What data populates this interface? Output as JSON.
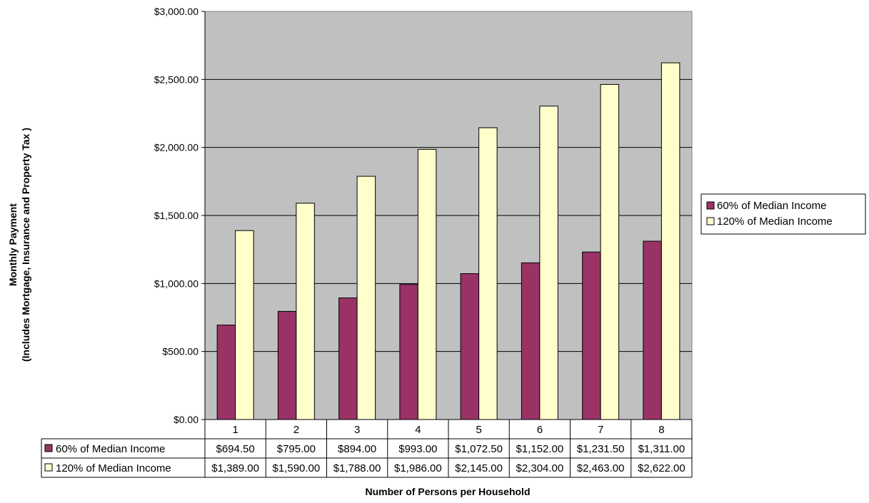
{
  "chart_data": {
    "type": "bar",
    "categories": [
      "1",
      "2",
      "3",
      "4",
      "5",
      "6",
      "7",
      "8"
    ],
    "series": [
      {
        "name": "60% of Median Income",
        "color": "#993366",
        "values": [
          694.5,
          795.0,
          894.0,
          993.0,
          1072.5,
          1152.0,
          1231.5,
          1311.0
        ],
        "labels": [
          "$694.50",
          "$795.00",
          "$894.00",
          "$993.00",
          "$1,072.50",
          "$1,152.00",
          "$1,231.50",
          "$1,311.00"
        ]
      },
      {
        "name": "120% of Median Income",
        "color": "#ffffcc",
        "values": [
          1389.0,
          1590.0,
          1788.0,
          1986.0,
          2145.0,
          2304.0,
          2463.0,
          2622.0
        ],
        "labels": [
          "$1,389.00",
          "$1,590.00",
          "$1,788.00",
          "$1,986.00",
          "$2,145.00",
          "$2,304.00",
          "$2,463.00",
          "$2,622.00"
        ]
      }
    ],
    "ylim": [
      0,
      3000
    ],
    "yticks": [
      0,
      500,
      1000,
      1500,
      2000,
      2500,
      3000
    ],
    "ytick_labels": [
      "$0.00",
      "$500.00",
      "$1,000.00",
      "$1,500.00",
      "$2,000.00",
      "$2,500.00",
      "$3,000.00"
    ],
    "xlabel": "Number of Persons per Household",
    "ylabel": [
      "Monthly Payment",
      "(Includes Mortgage, Insurance and Property Tax )"
    ],
    "legend_position": "right",
    "grid": "horizontal",
    "plot_background": "#c0c0c0",
    "data_table": true
  }
}
